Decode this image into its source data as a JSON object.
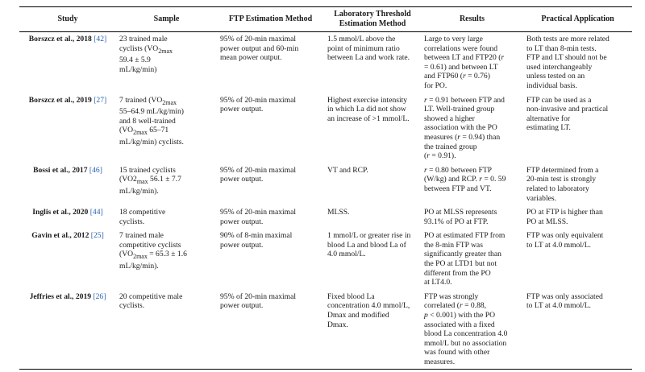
{
  "table": {
    "headers": [
      {
        "html": "Study"
      },
      {
        "html": "Sample"
      },
      {
        "html": "FTP Estimation Method"
      },
      {
        "html": "Laboratory Threshold<br>Estimation Method"
      },
      {
        "html": "Results"
      },
      {
        "html": "Practical Application"
      }
    ],
    "rows": [
      {
        "study": "Borszcz et al., 2018",
        "ref": "42",
        "cells": [
          "23 trained male<br>cyclists (VO<sub>2max</sub><br>59.4 ± 5.9<br>mL/kg/min)",
          "95% of 20-min maximal<br>power output and 60-min<br>mean power output.",
          "1.5 mmol/L above the<br>point of minimum ratio<br>between La and work rate.",
          "Large to very large<br>correlations were found<br>between LT and FTP20 (<i>r</i><br>= 0.61) and between LT<br>and FTP60 (<i>r</i> = 0.76)<br>for PO.",
          "Both tests are more related<br>to LT than 8-min tests.<br>FTP and LT should not be<br>used interchangeably<br>unless tested on an<br>individual basis."
        ]
      },
      {
        "study": "Borszcz et al., 2019",
        "ref": "27",
        "cells": [
          "7 trained (VO<sub>2max</sub><br>55–64.9 mL/kg/min)<br>and 8 well-trained<br>(VO<sub>2max</sub> 65–71<br>mL/kg/min) cyclists.",
          "95% of 20-min maximal<br>power output.",
          "Highest exercise intensity<br>in which La did not show<br>an increase of &gt;1 mmol/L.",
          "<i>r</i> = 0.91 between FTP and<br>LT. Well-trained group<br>showed a higher<br>association with the PO<br>measures (<i>r</i> = 0.94) than<br>the trained group<br>(<i>r</i> = 0.91).",
          "FTP can be used as a<br>non-invasive and practical<br>alternative for<br>estimating LT."
        ]
      },
      {
        "study": "Bossi et al., 2017",
        "ref": "46",
        "cells": [
          "15 trained cyclists<br>(VO2<sub>max</sub> 56.1 ± 7.7<br>mL/kg/min).",
          "95% of 20-min maximal<br>power output.",
          "VT and RCP.",
          "<i>r</i> = 0.80 between FTP<br>(W/kg) and RCP. <i>r</i> = 0. 59<br>between FTP and VT.",
          "FTP determined from a<br>20-min test is strongly<br>related to laboratory<br>variables."
        ]
      },
      {
        "study": "Inglis et al., 2020",
        "ref": "44",
        "cells": [
          "18 competitive<br>cyclists.",
          "95% of 20-min maximal<br>power output.",
          "MLSS.",
          "PO at MLSS represents<br>93.1% of PO at FTP.",
          "PO at FTP is higher than<br>PO at MLSS."
        ]
      },
      {
        "study": "Gavin et al., 2012",
        "ref": "25",
        "cells": [
          "7 trained male<br>competitive cyclists<br>(VO<sub>2max</sub> = 65.3 ± 1.6<br>mL/kg/min).",
          "90% of 8-min maximal<br>power output.",
          "1 mmol/L or greater rise in<br>blood La and blood La of<br>4.0 mmol/L.",
          "PO at estimated FTP from<br>the 8-min FTP was<br>significantly greater than<br>the PO at LTD1 but not<br>different from the PO<br>at LT4.0.",
          "FTP was only equivalent<br>to LT at 4.0 mmol/L."
        ]
      },
      {
        "study": "Jeffries et al., 2019",
        "ref": "26",
        "cells": [
          "20 competitive male<br>cyclists.",
          "95% of 20-min maximal<br>power output.",
          "Fixed blood La<br>concentration 4.0 mmol/L,<br>Dmax and modified<br>Dmax.",
          "FTP was strongly<br>correlated (<i>r</i> = 0.88,<br><i>p</i> &lt; 0.001) with the PO<br>associated with a fixed<br>blood La concentration 4.0<br>mmol/L but no association<br>was found with other<br>measures.",
          "FTP was only associated<br>to LT at 4.0 mmol/L."
        ]
      }
    ]
  }
}
